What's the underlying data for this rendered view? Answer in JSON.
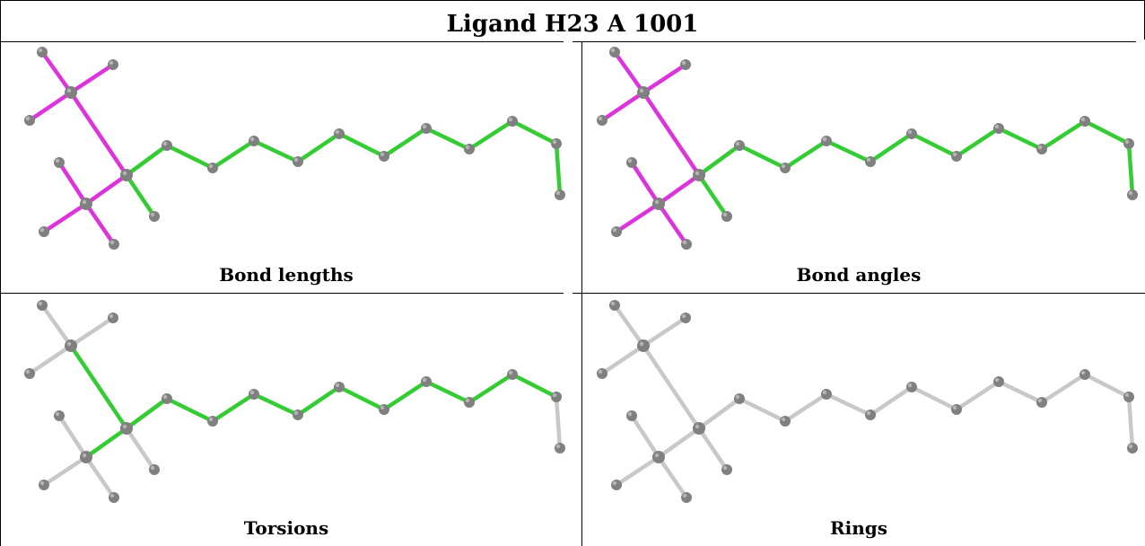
{
  "title": "Ligand H23 A 1001",
  "colors": {
    "outlier": "#dd33dd",
    "ok": "#33cc33",
    "neutral": "#c8c8c8",
    "atom": "#808080"
  },
  "panels": [
    {
      "caption": "Bond lengths",
      "bondColors": [
        "outlier",
        "outlier",
        "outlier",
        "outlier",
        "outlier",
        "outlier",
        "outlier",
        "outlier",
        "ok",
        "ok",
        "ok",
        "ok",
        "ok",
        "ok",
        "ok",
        "ok",
        "ok",
        "ok",
        "ok",
        "ok"
      ]
    },
    {
      "caption": "Bond angles",
      "bondColors": [
        "outlier",
        "outlier",
        "outlier",
        "outlier",
        "outlier",
        "outlier",
        "outlier",
        "outlier",
        "ok",
        "ok",
        "ok",
        "ok",
        "ok",
        "ok",
        "ok",
        "ok",
        "ok",
        "ok",
        "ok",
        "ok"
      ]
    },
    {
      "caption": "Torsions",
      "bondColors": [
        "neutral",
        "neutral",
        "neutral",
        "ok",
        "neutral",
        "neutral",
        "neutral",
        "ok",
        "neutral",
        "ok",
        "ok",
        "ok",
        "ok",
        "ok",
        "ok",
        "ok",
        "ok",
        "ok",
        "ok",
        "neutral"
      ]
    },
    {
      "caption": "Rings",
      "bondColors": [
        "neutral",
        "neutral",
        "neutral",
        "neutral",
        "neutral",
        "neutral",
        "neutral",
        "neutral",
        "neutral",
        "neutral",
        "neutral",
        "neutral",
        "neutral",
        "neutral",
        "neutral",
        "neutral",
        "neutral",
        "neutral",
        "neutral",
        "neutral"
      ]
    }
  ]
}
